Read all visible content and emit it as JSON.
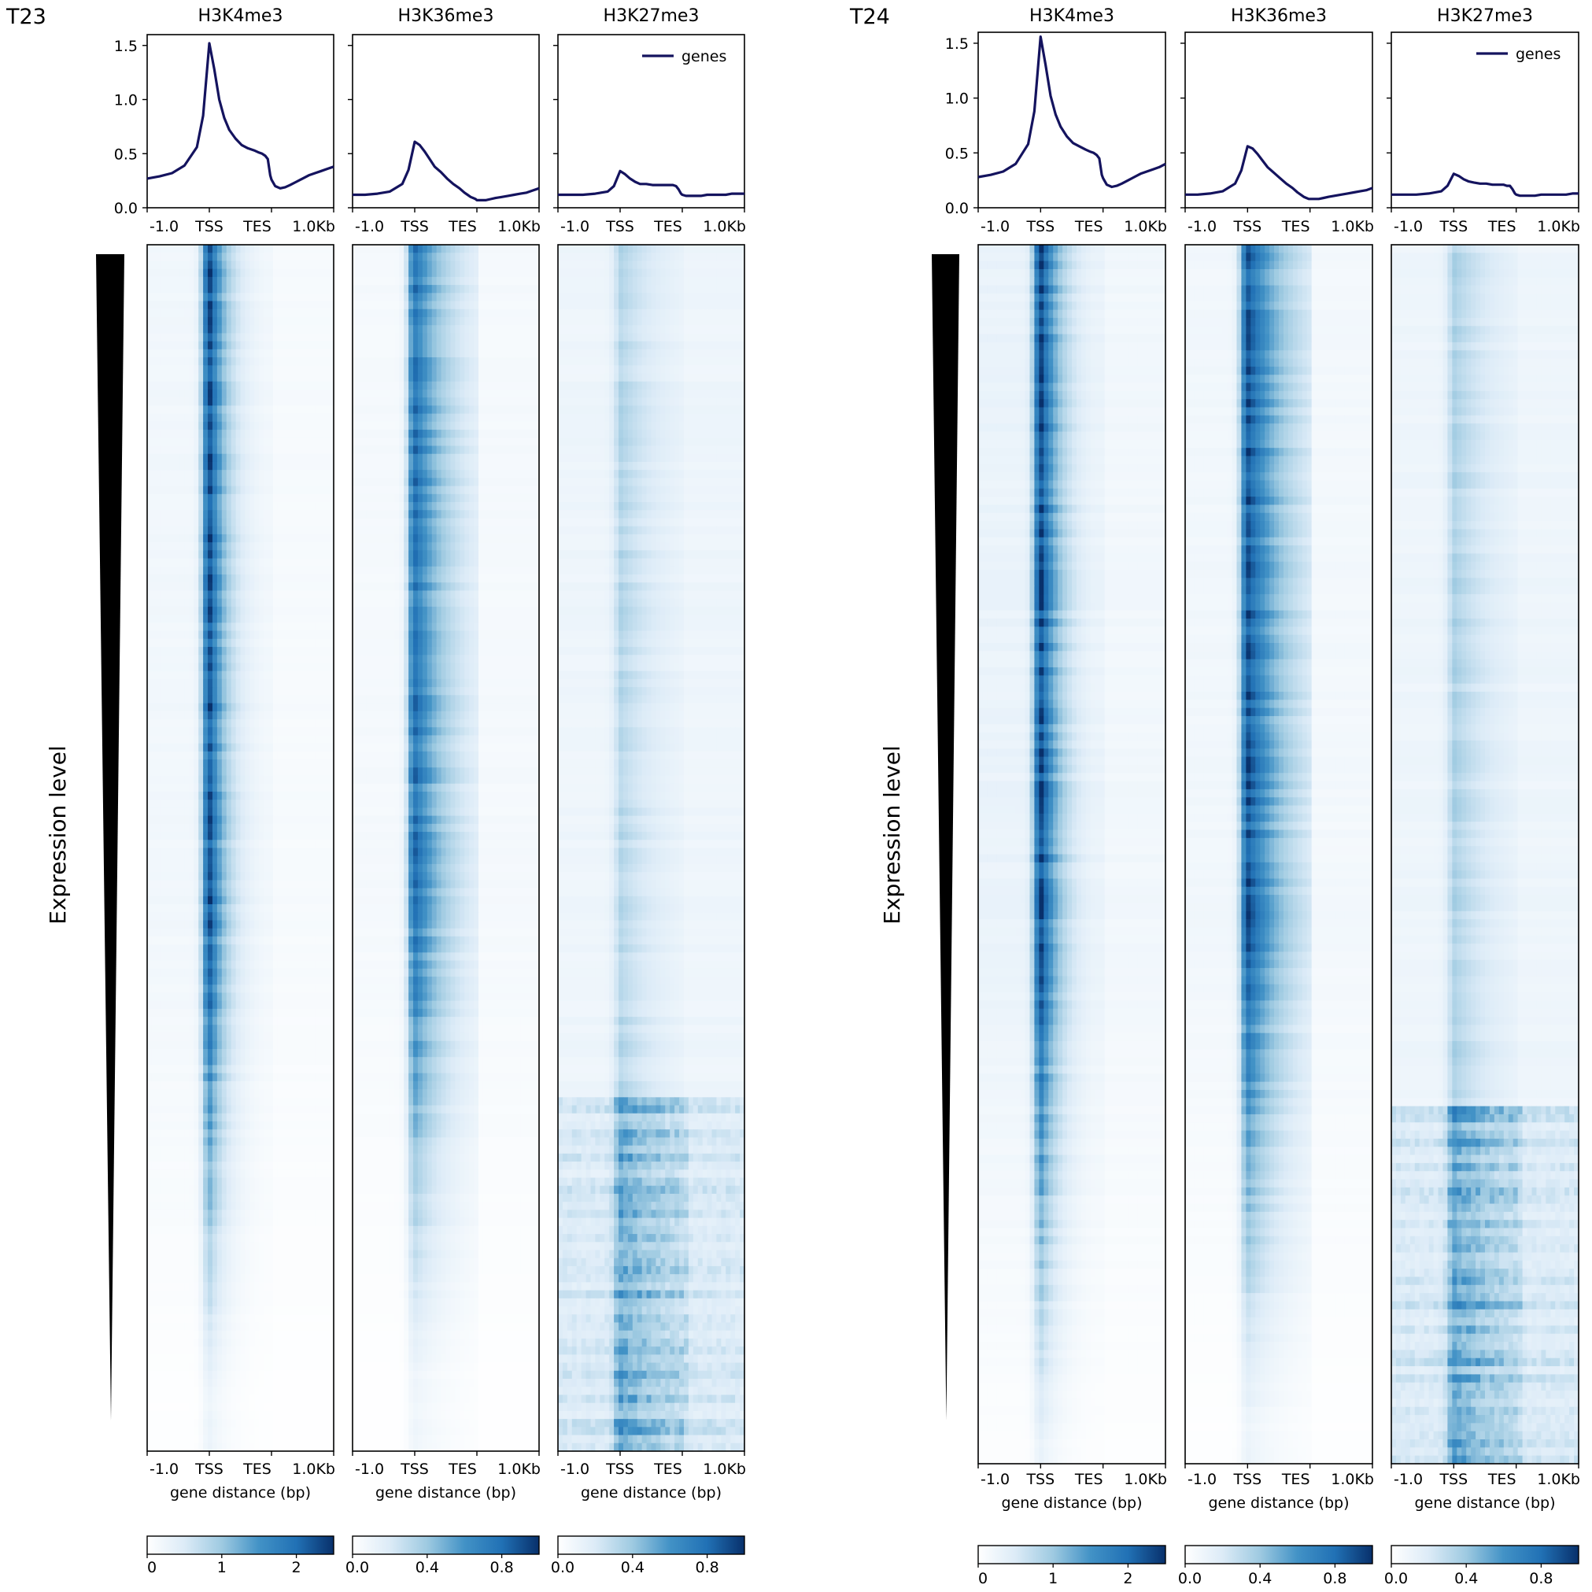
{
  "chart_data": {
    "type": "heatmap",
    "description_free": true,
    "heatmap_x_labels": [
      "-1.0",
      "TSS",
      "TES",
      "1.0Kb"
    ],
    "xlabel": "gene distance (bp)",
    "side_label": "Expression level",
    "legend_label": "genes",
    "line_color": "#14135e",
    "colormap": [
      "#ffffff",
      "#dcebf7",
      "#9ecae1",
      "#4292c6",
      "#2171b5",
      "#08306b"
    ],
    "profile_ylim": [
      0,
      1.6
    ],
    "profile_yticks": [
      "0.0",
      "0.5",
      "1.0",
      "1.5"
    ],
    "profile_x": [
      -1.0,
      -0.8,
      -0.6,
      -0.4,
      -0.2,
      -0.1,
      0.0,
      0.08,
      0.16,
      0.24,
      0.32,
      0.42,
      0.52,
      0.62,
      0.72,
      0.8,
      0.85,
      0.9,
      0.94,
      0.98,
      1.0,
      1.06,
      1.14,
      1.22,
      1.3,
      1.4,
      1.5,
      1.6,
      1.7,
      1.8,
      1.9,
      2.0
    ],
    "profile_x_meaning": "-1.0 = 1 kb upstream, 0 = TSS, 1.0 = TES, 2.0 = 1 kb downstream (scaled gene body)",
    "samples": [
      {
        "name": "T23",
        "panels": [
          {
            "mark": "H3K4me3",
            "profile": [
              0.27,
              0.29,
              0.32,
              0.39,
              0.56,
              0.85,
              1.52,
              1.28,
              1.0,
              0.83,
              0.72,
              0.64,
              0.58,
              0.55,
              0.53,
              0.51,
              0.5,
              0.48,
              0.45,
              0.3,
              0.26,
              0.2,
              0.18,
              0.19,
              0.21,
              0.24,
              0.27,
              0.3,
              0.32,
              0.34,
              0.36,
              0.38
            ],
            "legend": false,
            "colorbar_ticks": [
              {
                "value": 0,
                "label": "0"
              },
              {
                "value": 1,
                "label": "1"
              },
              {
                "value": 2,
                "label": "2"
              }
            ],
            "colorbar_range": [
              0,
              2.5
            ],
            "heat_profile": {
              "upstream": 0.08,
              "peak": 0.88,
              "body_decay": 0.35,
              "downstream": 0.05,
              "lower_fade": 0.82,
              "lower_stripes": 0.0
            }
          },
          {
            "mark": "H3K36me3",
            "profile": [
              0.12,
              0.12,
              0.13,
              0.15,
              0.22,
              0.35,
              0.61,
              0.58,
              0.52,
              0.45,
              0.38,
              0.33,
              0.27,
              0.22,
              0.18,
              0.14,
              0.12,
              0.1,
              0.09,
              0.08,
              0.07,
              0.07,
              0.07,
              0.08,
              0.09,
              0.1,
              0.11,
              0.12,
              0.13,
              0.14,
              0.16,
              0.18
            ],
            "legend": false,
            "colorbar_ticks": [
              {
                "value": 0.0,
                "label": "0.0"
              },
              {
                "value": 0.4,
                "label": "0.4"
              },
              {
                "value": 0.8,
                "label": "0.8"
              }
            ],
            "colorbar_range": [
              0,
              1.0
            ],
            "heat_profile": {
              "upstream": 0.06,
              "peak": 0.75,
              "body_decay": 0.7,
              "downstream": 0.06,
              "lower_fade": 0.85,
              "lower_stripes": 0.0
            }
          },
          {
            "mark": "H3K27me3",
            "profile": [
              0.12,
              0.12,
              0.12,
              0.13,
              0.15,
              0.2,
              0.34,
              0.31,
              0.27,
              0.24,
              0.22,
              0.22,
              0.21,
              0.21,
              0.21,
              0.21,
              0.21,
              0.2,
              0.17,
              0.13,
              0.12,
              0.11,
              0.11,
              0.11,
              0.11,
              0.12,
              0.12,
              0.12,
              0.12,
              0.13,
              0.13,
              0.13
            ],
            "legend": true,
            "colorbar_ticks": [
              {
                "value": 0.0,
                "label": "0.0"
              },
              {
                "value": 0.4,
                "label": "0.4"
              },
              {
                "value": 0.8,
                "label": "0.8"
              }
            ],
            "colorbar_range": [
              0,
              1.0
            ],
            "heat_profile": {
              "upstream": 0.1,
              "peak": 0.28,
              "body_decay": 0.9,
              "downstream": 0.1,
              "lower_fade": 0.0,
              "lower_stripes": 0.6
            }
          }
        ]
      },
      {
        "name": "T24",
        "panels": [
          {
            "mark": "H3K4me3",
            "profile": [
              0.28,
              0.3,
              0.33,
              0.4,
              0.58,
              0.88,
              1.56,
              1.3,
              1.02,
              0.85,
              0.74,
              0.65,
              0.59,
              0.56,
              0.53,
              0.51,
              0.5,
              0.48,
              0.45,
              0.3,
              0.27,
              0.21,
              0.19,
              0.2,
              0.22,
              0.25,
              0.28,
              0.31,
              0.33,
              0.35,
              0.37,
              0.4
            ],
            "legend": false,
            "colorbar_ticks": [
              {
                "value": 0,
                "label": "0"
              },
              {
                "value": 1,
                "label": "1"
              },
              {
                "value": 2,
                "label": "2"
              }
            ],
            "colorbar_range": [
              0,
              2.5
            ],
            "heat_profile": {
              "upstream": 0.12,
              "peak": 0.9,
              "body_decay": 0.38,
              "downstream": 0.08,
              "lower_fade": 0.75,
              "lower_stripes": 0.0
            }
          },
          {
            "mark": "H3K36me3",
            "profile": [
              0.12,
              0.12,
              0.13,
              0.15,
              0.22,
              0.34,
              0.56,
              0.54,
              0.49,
              0.43,
              0.37,
              0.32,
              0.27,
              0.22,
              0.18,
              0.14,
              0.12,
              0.1,
              0.09,
              0.08,
              0.08,
              0.08,
              0.08,
              0.09,
              0.1,
              0.11,
              0.12,
              0.13,
              0.14,
              0.15,
              0.16,
              0.18
            ],
            "legend": false,
            "colorbar_ticks": [
              {
                "value": 0.0,
                "label": "0.0"
              },
              {
                "value": 0.4,
                "label": "0.4"
              },
              {
                "value": 0.8,
                "label": "0.8"
              }
            ],
            "colorbar_range": [
              0,
              1.0
            ],
            "heat_profile": {
              "upstream": 0.08,
              "peak": 0.85,
              "body_decay": 0.75,
              "downstream": 0.07,
              "lower_fade": 0.8,
              "lower_stripes": 0.0
            }
          },
          {
            "mark": "H3K27me3",
            "profile": [
              0.12,
              0.12,
              0.12,
              0.13,
              0.15,
              0.2,
              0.31,
              0.29,
              0.26,
              0.24,
              0.23,
              0.22,
              0.22,
              0.21,
              0.21,
              0.21,
              0.2,
              0.2,
              0.17,
              0.13,
              0.12,
              0.11,
              0.11,
              0.11,
              0.11,
              0.12,
              0.12,
              0.12,
              0.12,
              0.12,
              0.13,
              0.13
            ],
            "legend": true,
            "colorbar_ticks": [
              {
                "value": 0.0,
                "label": "0.0"
              },
              {
                "value": 0.4,
                "label": "0.4"
              },
              {
                "value": 0.8,
                "label": "0.8"
              }
            ],
            "colorbar_range": [
              0,
              1.0
            ],
            "heat_profile": {
              "upstream": 0.1,
              "peak": 0.3,
              "body_decay": 0.9,
              "downstream": 0.1,
              "lower_fade": 0.0,
              "lower_stripes": 0.6
            }
          }
        ]
      }
    ]
  }
}
